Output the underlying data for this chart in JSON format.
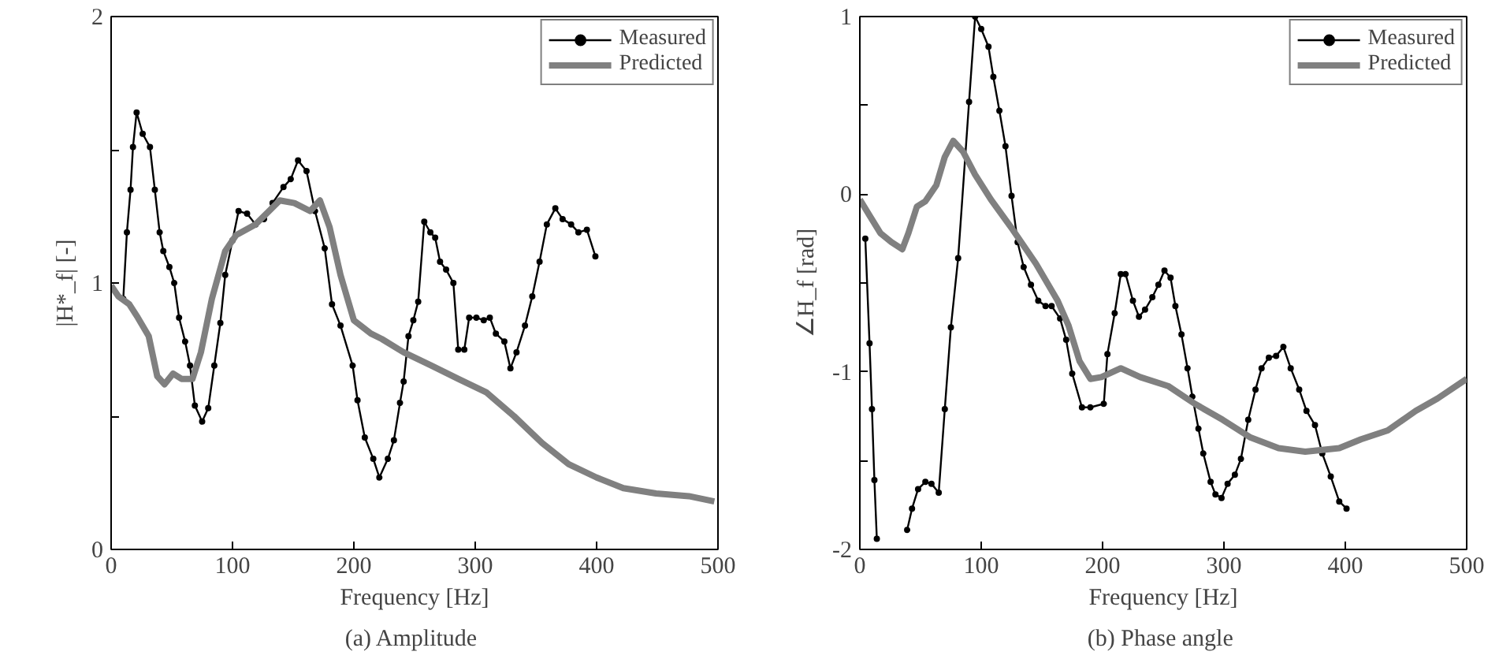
{
  "chart_data": [
    {
      "type": "line",
      "xlabel": "Frequency [Hz]",
      "ylabel": "|H*_f| [-]",
      "annotations": [
        "(a)  Amplitude"
      ],
      "xlim": [
        0,
        500
      ],
      "ylim": [
        0,
        2
      ],
      "xticks": [
        0,
        100,
        200,
        300,
        400,
        500
      ],
      "yticks": [
        0,
        {
          "value": 0.5,
          "label": null
        },
        1,
        {
          "value": 1.5,
          "label": null
        },
        2
      ],
      "grid": false,
      "legend": "top right",
      "series": [
        {
          "name": "Measured",
          "color": "#000000",
          "marker": "circle",
          "x": [
            10,
            13,
            16,
            18,
            21,
            26,
            32,
            36,
            40,
            43,
            48,
            52,
            56,
            61,
            65,
            69,
            75,
            80,
            85,
            90,
            94,
            100,
            105,
            112,
            119,
            126,
            133,
            142,
            148,
            154,
            161,
            168,
            176,
            182,
            189,
            199,
            203,
            209,
            216,
            221,
            228,
            233,
            238,
            241,
            245,
            249,
            253,
            258,
            263,
            267,
            271,
            276,
            282,
            286,
            291,
            295,
            301,
            307,
            312,
            317,
            324,
            329,
            334,
            341,
            347,
            353,
            359,
            366,
            372,
            379,
            385,
            392,
            399
          ],
          "values": [
            0.94,
            1.19,
            1.35,
            1.51,
            1.64,
            1.56,
            1.51,
            1.35,
            1.19,
            1.12,
            1.06,
            1.0,
            0.87,
            0.78,
            0.69,
            0.54,
            0.48,
            0.53,
            0.69,
            0.85,
            1.03,
            1.16,
            1.27,
            1.26,
            1.22,
            1.24,
            1.3,
            1.36,
            1.39,
            1.46,
            1.42,
            1.27,
            1.13,
            0.92,
            0.84,
            0.69,
            0.56,
            0.42,
            0.34,
            0.27,
            0.34,
            0.41,
            0.55,
            0.63,
            0.8,
            0.86,
            0.93,
            1.23,
            1.19,
            1.17,
            1.08,
            1.05,
            1.0,
            0.75,
            0.75,
            0.87,
            0.87,
            0.86,
            0.87,
            0.81,
            0.78,
            0.68,
            0.74,
            0.84,
            0.95,
            1.08,
            1.22,
            1.28,
            1.24,
            1.22,
            1.19,
            1.2,
            1.1
          ]
        },
        {
          "name": "Predicted",
          "color": "#808080",
          "marker": "none",
          "x": [
            0,
            6,
            15,
            22,
            31,
            38,
            44,
            51,
            58,
            67,
            74,
            83,
            94,
            103,
            119,
            139,
            151,
            164,
            172,
            180,
            189,
            200,
            214,
            223,
            241,
            264,
            286,
            309,
            332,
            355,
            377,
            400,
            422,
            449,
            476,
            497
          ],
          "values": [
            0.99,
            0.95,
            0.92,
            0.87,
            0.8,
            0.65,
            0.62,
            0.66,
            0.64,
            0.64,
            0.74,
            0.94,
            1.12,
            1.18,
            1.22,
            1.31,
            1.3,
            1.27,
            1.31,
            1.21,
            1.03,
            0.86,
            0.81,
            0.79,
            0.74,
            0.69,
            0.64,
            0.59,
            0.5,
            0.4,
            0.32,
            0.27,
            0.23,
            0.21,
            0.2,
            0.18
          ]
        }
      ]
    },
    {
      "type": "line",
      "xlabel": "Frequency [Hz]",
      "ylabel": "∠H_f [rad]",
      "annotations": [
        "(b)  Phase angle"
      ],
      "xlim": [
        0,
        500
      ],
      "ylim": [
        -2,
        1
      ],
      "xticks": [
        0,
        100,
        200,
        300,
        400,
        500
      ],
      "yticks": [
        -2,
        {
          "value": -1.5,
          "label": null
        },
        -1,
        {
          "value": -0.5,
          "label": null
        },
        0,
        {
          "value": 0.5,
          "label": null
        },
        1
      ],
      "grid": false,
      "legend": "top right",
      "series": [
        {
          "name": "Measured",
          "color": "#000000",
          "marker": "circle",
          "x": [
            4.5,
            8,
            10,
            12,
            14,
            26,
            39,
            43,
            48,
            54,
            59,
            65,
            70,
            75,
            81,
            90,
            95,
            100,
            106,
            110,
            115,
            120,
            125,
            130,
            135,
            141,
            147,
            153,
            158,
            165,
            170,
            175,
            183,
            190,
            201,
            204,
            210,
            215,
            219,
            225,
            230,
            235,
            241,
            246,
            251,
            256,
            260,
            265,
            270,
            274,
            279,
            283,
            289,
            293,
            298,
            303,
            309,
            314,
            320,
            326,
            331,
            337,
            343,
            349,
            355,
            362,
            368,
            375,
            381,
            388,
            395,
            401
          ],
          "values": [
            -0.25,
            -0.84,
            -1.21,
            -1.61,
            -1.94,
            null,
            -1.89,
            -1.77,
            -1.66,
            -1.62,
            -1.63,
            -1.68,
            -1.21,
            -0.75,
            -0.36,
            0.52,
            1.0,
            0.93,
            0.83,
            0.66,
            0.47,
            0.27,
            -0.01,
            -0.27,
            -0.41,
            -0.51,
            -0.6,
            -0.63,
            -0.63,
            -0.7,
            -0.82,
            -1.01,
            -1.2,
            -1.2,
            -1.18,
            -0.9,
            -0.67,
            -0.45,
            -0.45,
            -0.6,
            -0.69,
            -0.65,
            -0.58,
            -0.51,
            -0.43,
            -0.47,
            -0.63,
            -0.79,
            -0.98,
            -1.14,
            -1.32,
            -1.46,
            -1.62,
            -1.69,
            -1.71,
            -1.63,
            -1.58,
            -1.49,
            -1.27,
            -1.1,
            -0.98,
            -0.92,
            -0.91,
            -0.86,
            -0.98,
            -1.1,
            -1.22,
            -1.3,
            -1.46,
            -1.59,
            -1.73,
            -1.77
          ]
        },
        {
          "name": "Predicted",
          "color": "#808080",
          "marker": "none",
          "x": [
            0,
            8,
            17,
            26,
            35,
            40,
            47,
            54,
            63,
            70,
            77,
            85,
            95,
            108,
            126,
            145,
            163,
            172,
            181,
            190,
            199,
            215,
            231,
            254,
            276,
            299,
            322,
            345,
            367,
            395,
            413,
            435,
            458,
            476,
            500
          ],
          "values": [
            -0.03,
            -0.12,
            -0.22,
            -0.27,
            -0.31,
            -0.22,
            -0.07,
            -0.04,
            0.05,
            0.21,
            0.3,
            0.24,
            0.11,
            -0.03,
            -0.2,
            -0.39,
            -0.6,
            -0.74,
            -0.94,
            -1.04,
            -1.03,
            -0.98,
            -1.03,
            -1.08,
            -1.18,
            -1.27,
            -1.37,
            -1.43,
            -1.45,
            -1.43,
            -1.38,
            -1.33,
            -1.22,
            -1.15,
            -1.04
          ]
        }
      ]
    }
  ]
}
